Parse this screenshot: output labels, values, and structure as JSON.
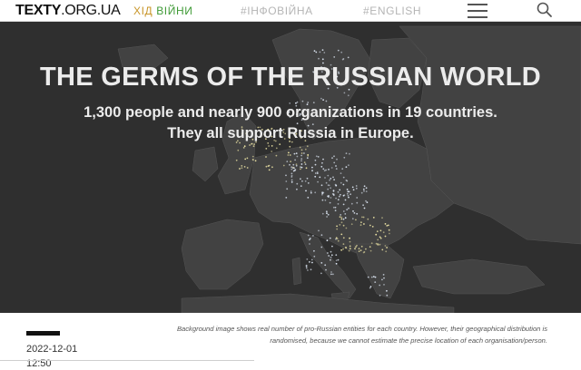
{
  "navbar": {
    "logo_bold": "TEXTY",
    "logo_light": ".ORG.UA",
    "war_part1": "ХІД ",
    "war_part2": "ВІЙНИ",
    "infowar": "#ІНФОВІЙНА",
    "english": "#ENGLISH",
    "menu_icon": "hamburger-menu-icon",
    "search_icon": "search-icon"
  },
  "hero": {
    "title": "THE GERMS OF THE RUSSIAN WORLD",
    "subtitle_line1": "1,300 people and nearly 900 organizations in 19 countries.",
    "subtitle_line2": "They all support Russia in Europe."
  },
  "article": {
    "date": "2022-12-01",
    "time": "12:50",
    "caption_line1": "Background image shows real number of pro-Russian entities for each country. However, their geographical distribution is",
    "caption_line2": "randomised, because we cannot estimate the precise location of each organisation/person."
  },
  "colors": {
    "map_background": "#2f2f2f",
    "land": "#424242",
    "dots_warm": "#efe6a6",
    "dots_cold": "#dfe8f5",
    "war_orange": "#c8962a",
    "war_green": "#3f9a36"
  }
}
